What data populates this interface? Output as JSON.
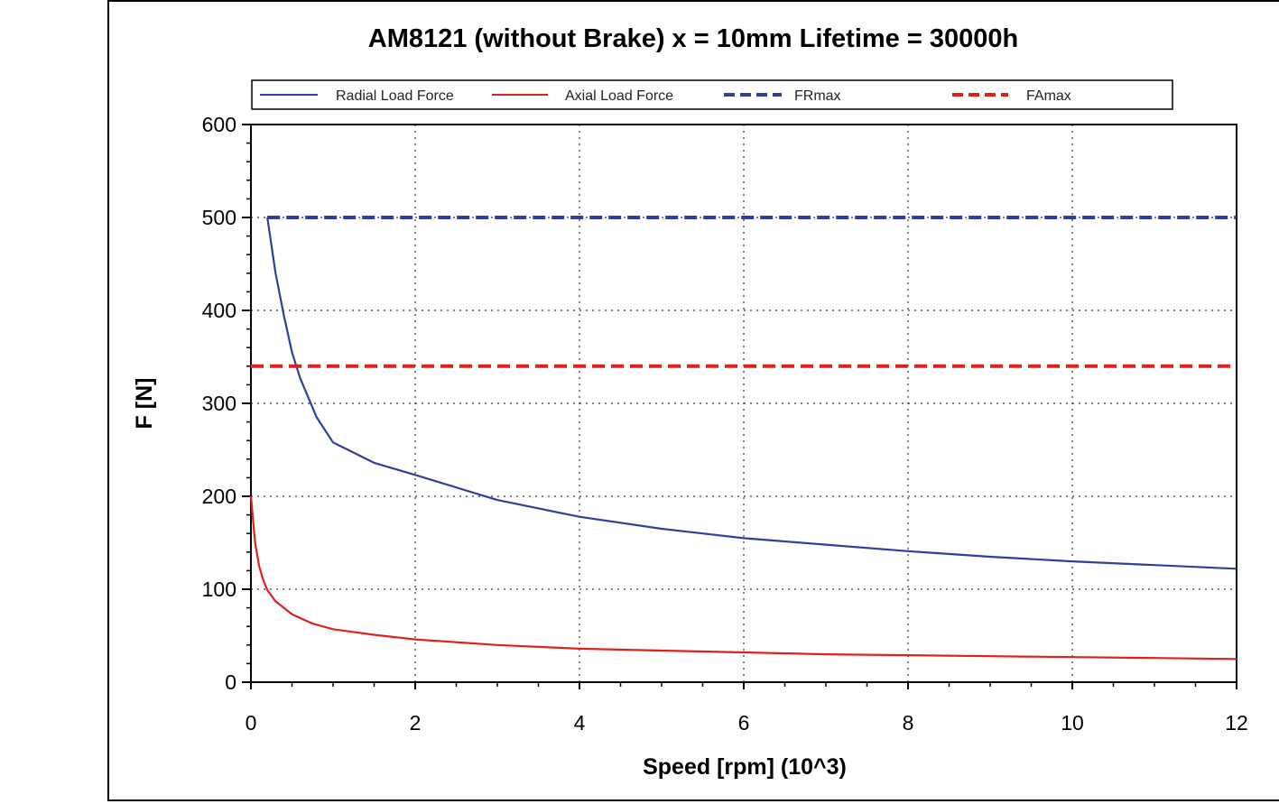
{
  "chart_data": {
    "type": "line",
    "title": "AM8121 (without Brake) x = 10mm Lifetime = 30000h",
    "xlabel": "Speed [rpm] (10^3)",
    "ylabel": "F [N]",
    "xlim": [
      0,
      12
    ],
    "ylim": [
      0,
      600
    ],
    "x_ticks": [
      "0",
      "2",
      "4",
      "6",
      "8",
      "10",
      "12"
    ],
    "y_ticks": [
      "0",
      "100",
      "200",
      "300",
      "400",
      "500",
      "600"
    ],
    "grid": true,
    "legend_position": "top",
    "series": [
      {
        "name": "Radial Load Force",
        "color": "#2e3f9e",
        "style": "solid",
        "x": [
          0.2,
          0.3,
          0.4,
          0.5,
          0.6,
          0.8,
          1.0,
          1.5,
          2.0,
          3.0,
          4.0,
          5.0,
          6.0,
          7.0,
          8.0,
          9.0,
          10.0,
          11.0,
          12.0
        ],
        "y": [
          500,
          440,
          395,
          355,
          327,
          285,
          258,
          236,
          223,
          196,
          178,
          165,
          155,
          148,
          141,
          135,
          130,
          126,
          122
        ]
      },
      {
        "name": "Axial Load Force",
        "color": "#e0201c",
        "style": "solid",
        "x": [
          0.0,
          0.05,
          0.1,
          0.15,
          0.2,
          0.3,
          0.5,
          0.75,
          1.0,
          1.5,
          2.0,
          3.0,
          4.0,
          5.0,
          6.0,
          7.0,
          8.0,
          9.0,
          10.0,
          11.0,
          12.0
        ],
        "y": [
          200,
          150,
          125,
          110,
          99,
          87,
          73,
          63,
          57,
          51,
          46,
          40,
          36,
          34,
          32,
          30,
          29,
          28,
          27,
          26,
          25
        ]
      },
      {
        "name": "FRmax",
        "color": "#2e3f9e",
        "style": "dashed",
        "x": [
          0.2,
          12
        ],
        "y": [
          500,
          500
        ]
      },
      {
        "name": "FAmax",
        "color": "#e0201c",
        "style": "dashed",
        "x": [
          0,
          12
        ],
        "y": [
          340,
          340
        ]
      }
    ]
  }
}
